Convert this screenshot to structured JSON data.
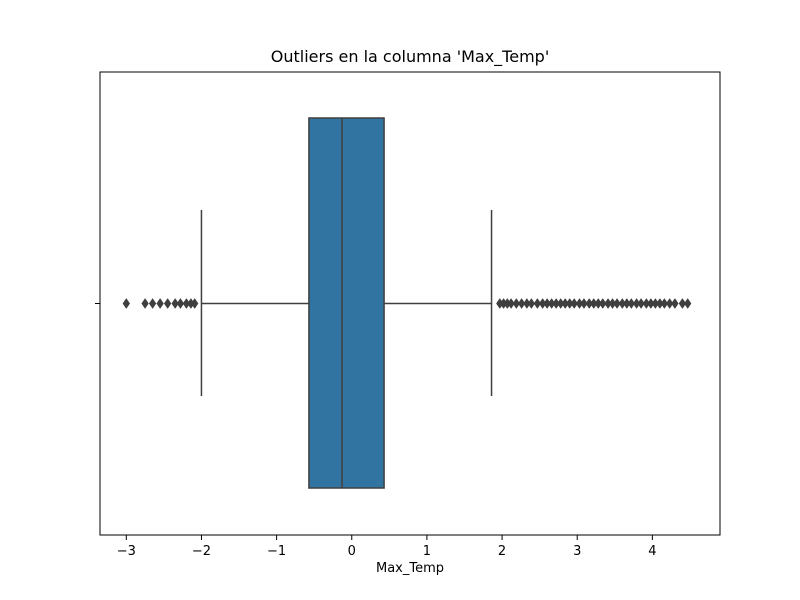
{
  "chart_data": {
    "type": "box",
    "title": "Outliers en la columna 'Max_Temp'",
    "xlabel": "Max_Temp",
    "ylabel": "",
    "xlim": [
      -3.35,
      4.9
    ],
    "xticks": [
      -3,
      -2,
      -1,
      0,
      1,
      2,
      3,
      4
    ],
    "xtick_labels": [
      "−3",
      "−2",
      "−1",
      "0",
      "1",
      "2",
      "3",
      "4"
    ],
    "box": {
      "q1": -0.57,
      "median": -0.13,
      "q3": 0.43,
      "whisker_low": -2.0,
      "whisker_high": 1.86,
      "color": "#3274a1",
      "edge_color": "#3f3f3f"
    },
    "outliers_low": [
      -3.0,
      -2.75,
      -2.65,
      -2.55,
      -2.45,
      -2.35,
      -2.28,
      -2.2,
      -2.14,
      -2.09
    ],
    "outliers_high": [
      1.97,
      2.02,
      2.07,
      2.12,
      2.19,
      2.26,
      2.33,
      2.39,
      2.47,
      2.54,
      2.6,
      2.66,
      2.72,
      2.78,
      2.84,
      2.9,
      2.96,
      3.03,
      3.09,
      3.16,
      3.22,
      3.28,
      3.34,
      3.41,
      3.47,
      3.53,
      3.6,
      3.66,
      3.72,
      3.79,
      3.85,
      3.92,
      3.98,
      4.04,
      4.1,
      4.16,
      4.23,
      4.3,
      4.4,
      4.47
    ],
    "grid": false
  }
}
